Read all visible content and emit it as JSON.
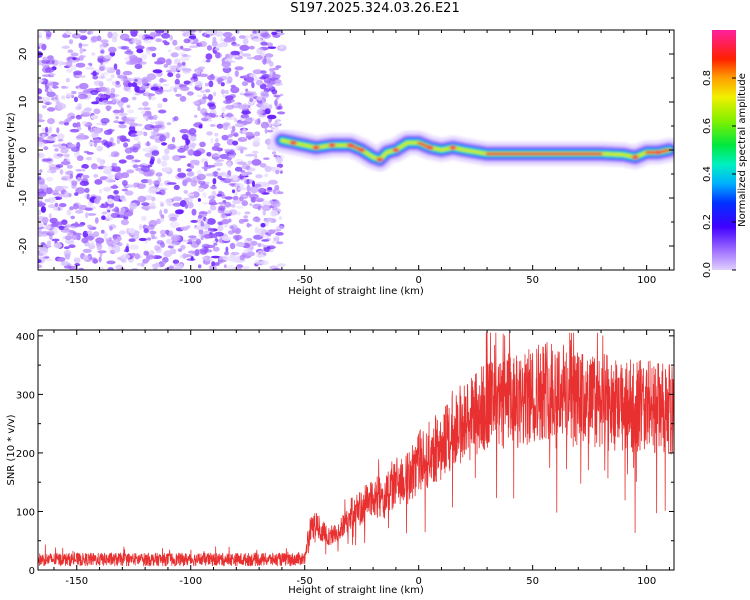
{
  "chart_data": [
    {
      "type": "heatmap",
      "title": "S197.2025.324.03.26.E21",
      "xlabel": "Height of straight line (km)",
      "ylabel": "Frequency (Hz)",
      "xlim": [
        -167,
        112
      ],
      "ylim": [
        -25,
        25
      ],
      "xticks": [
        -150,
        -100,
        -50,
        0,
        50,
        100
      ],
      "yticks": [
        -20,
        -10,
        0,
        10,
        20
      ],
      "colorbar": {
        "label": "Normalized spectral amplitude",
        "range": [
          0,
          1
        ],
        "ticks": [
          "0.0",
          "0.2",
          "0.4",
          "0.6",
          "0.8"
        ]
      },
      "signal_track": {
        "x": [
          -60,
          -55,
          -45,
          -38,
          -30,
          -25,
          -20,
          -17,
          -14,
          -10,
          -5,
          0,
          5,
          10,
          15,
          20,
          30,
          40,
          60,
          80,
          90,
          95,
          100,
          105,
          110
        ],
        "y": [
          2,
          1.5,
          0.5,
          1,
          1,
          0,
          -1.5,
          -2,
          -0.5,
          0,
          1.5,
          1.5,
          0.5,
          0,
          0.5,
          0,
          -0.8,
          -0.8,
          -0.8,
          -0.8,
          -1,
          -1.5,
          -0.5,
          -0.5,
          0
        ]
      },
      "noise_region_x": [
        -167,
        -60
      ]
    },
    {
      "type": "line",
      "title": "",
      "xlabel": "Height of straight line (km)",
      "ylabel": "SNR (10 * v/v)",
      "xlim": [
        -167,
        112
      ],
      "ylim": [
        0,
        410
      ],
      "xticks": [
        -150,
        -100,
        -50,
        0,
        50,
        100
      ],
      "yticks": [
        0,
        100,
        200,
        300,
        400
      ],
      "color": "#e83030",
      "series": [
        {
          "name": "SNR",
          "x": [
            -167,
            -150,
            -125,
            -100,
            -75,
            -55,
            -50,
            -48,
            -45,
            -40,
            -35,
            -30,
            -25,
            -20,
            -15,
            -10,
            -5,
            0,
            5,
            10,
            15,
            20,
            25,
            30,
            35,
            40,
            45,
            50,
            55,
            60,
            65,
            70,
            75,
            80,
            85,
            90,
            95,
            100,
            105,
            112
          ],
          "y": [
            18,
            18,
            18,
            18,
            18,
            18,
            20,
            70,
            80,
            60,
            65,
            100,
            110,
            130,
            125,
            155,
            160,
            190,
            205,
            220,
            250,
            260,
            275,
            290,
            285,
            300,
            290,
            310,
            320,
            320,
            310,
            300,
            295,
            300,
            290,
            285,
            290,
            290,
            285,
            280
          ]
        }
      ]
    }
  ]
}
